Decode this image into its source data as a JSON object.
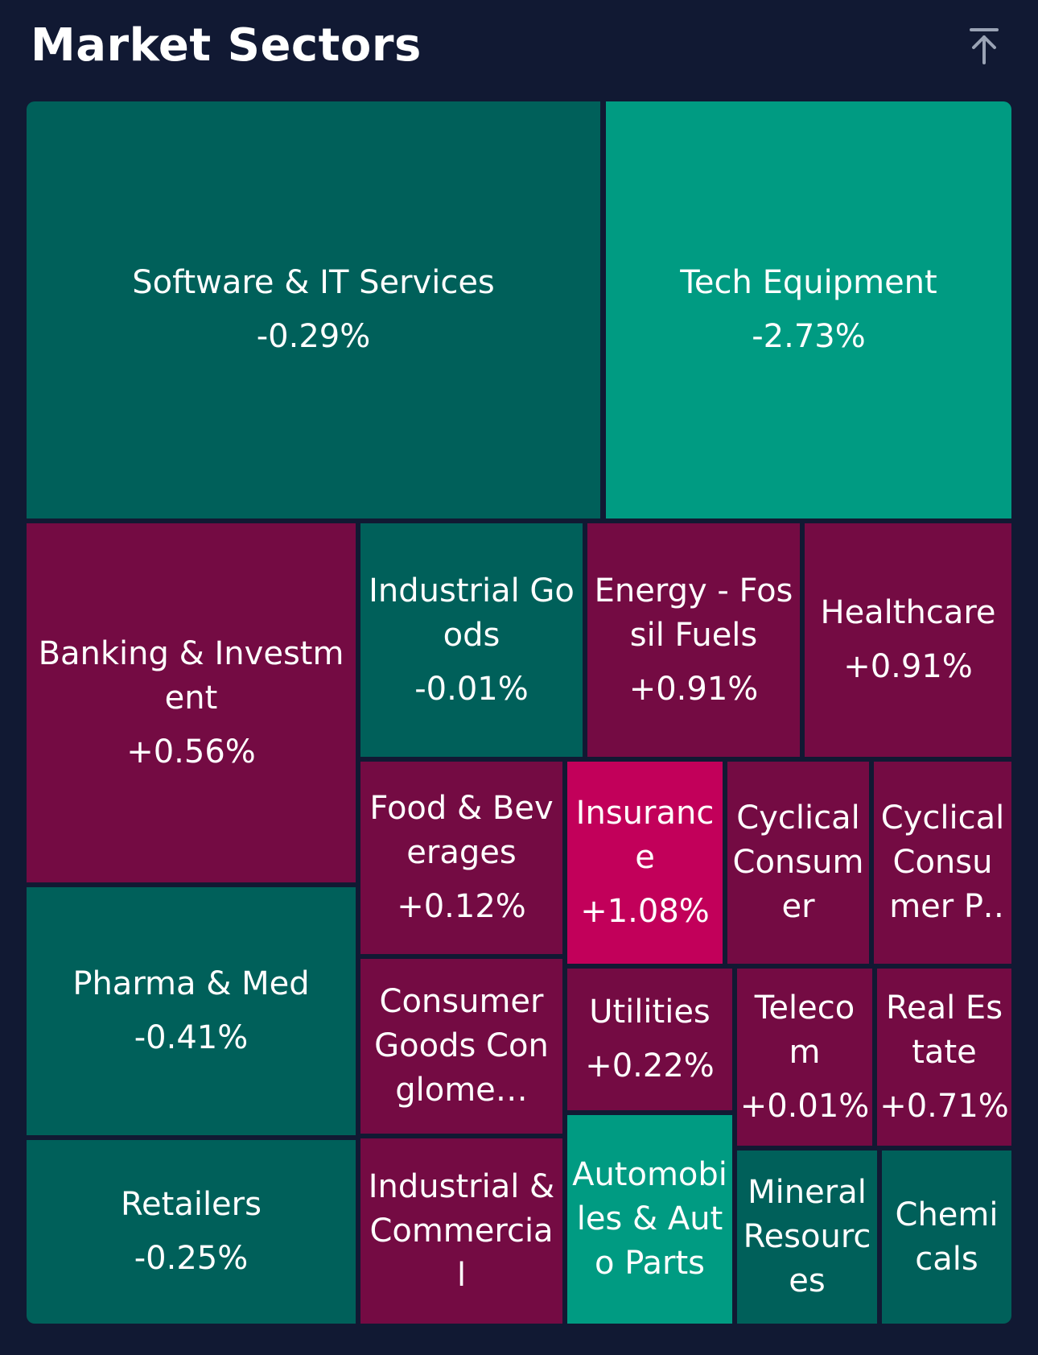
{
  "header": {
    "title": "Market Sectors",
    "collapse_icon": "arrow-up-to-line-icon"
  },
  "colors": {
    "background": "#111933",
    "negative_dark": "#00605a",
    "negative_bright": "#009b82",
    "positive_dark": "#740b43",
    "positive_bright": "#c2005a"
  },
  "sectors": [
    {
      "name": "Software & IT Services",
      "change": "-0.29%"
    },
    {
      "name": "Tech Equipment",
      "change": "-2.73%"
    },
    {
      "name": "Banking & Investment",
      "change": "+0.56%"
    },
    {
      "name": "Industrial Goods",
      "change": "-0.01%"
    },
    {
      "name": "Energy - Fossil Fuels",
      "change": "+0.91%"
    },
    {
      "name": "Healthcare",
      "change": "+0.91%"
    },
    {
      "name": "Food & Beverages",
      "change": "+0.12%"
    },
    {
      "name": "Insurance",
      "change": "+1.08%"
    },
    {
      "name": "Cyclical Consumer",
      "change": ""
    },
    {
      "name": "Cyclical Consumer Pro…",
      "change": ""
    },
    {
      "name": "Pharma & Med",
      "change": "-0.41%"
    },
    {
      "name": "Consumer Goods Conglome…",
      "change": ""
    },
    {
      "name": "Utilities",
      "change": "+0.22%"
    },
    {
      "name": "Telecom",
      "change": "+0.01%"
    },
    {
      "name": "Real Estate",
      "change": "+0.71%"
    },
    {
      "name": "Retailers",
      "change": "-0.25%"
    },
    {
      "name": "Industrial & Commercial",
      "change": ""
    },
    {
      "name": "Automobiles & Auto Parts",
      "change": ""
    },
    {
      "name": "Mineral Resources",
      "change": ""
    },
    {
      "name": "Chemicals",
      "change": ""
    }
  ]
}
